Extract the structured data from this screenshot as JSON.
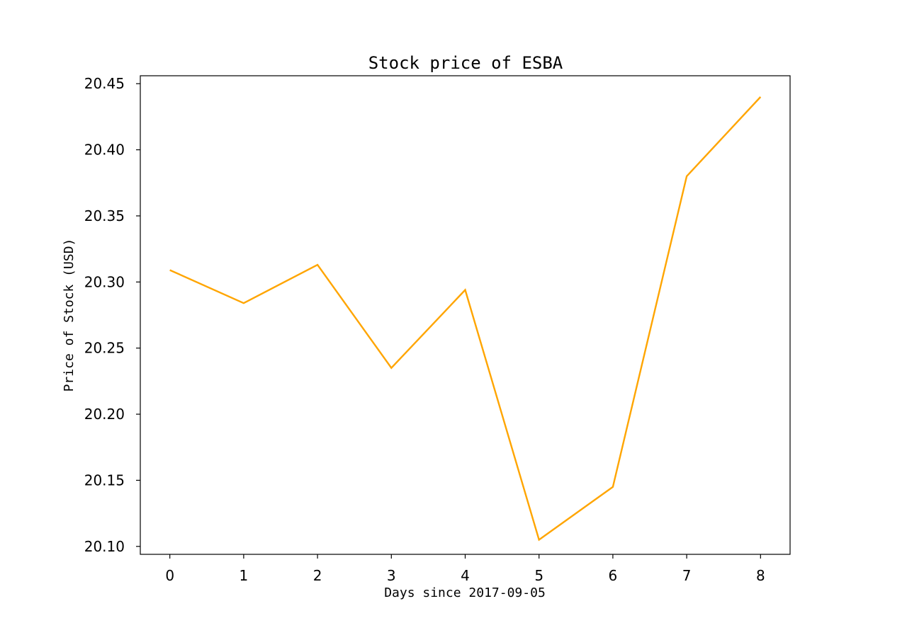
{
  "chart_data": {
    "type": "line",
    "title": "Stock price of ESBA",
    "xlabel": "Days since 2017-09-05",
    "ylabel": "Price of Stock (USD)",
    "x": [
      0,
      1,
      2,
      3,
      4,
      5,
      6,
      7,
      8
    ],
    "x_tick_labels": [
      "0",
      "1",
      "2",
      "3",
      "4",
      "5",
      "6",
      "7",
      "8"
    ],
    "y_ticks": [
      20.1,
      20.15,
      20.2,
      20.25,
      20.3,
      20.35,
      20.4,
      20.45
    ],
    "y_tick_labels": [
      "20.10",
      "20.15",
      "20.20",
      "20.25",
      "20.30",
      "20.35",
      "20.40",
      "20.45"
    ],
    "xlim": [
      -0.4,
      8.4
    ],
    "ylim": [
      20.094,
      20.456
    ],
    "grid": false,
    "series": [
      {
        "values": [
          20.309,
          20.284,
          20.313,
          20.235,
          20.294,
          20.105,
          20.145,
          20.38,
          20.44
        ],
        "color": "#ffa500"
      }
    ]
  }
}
